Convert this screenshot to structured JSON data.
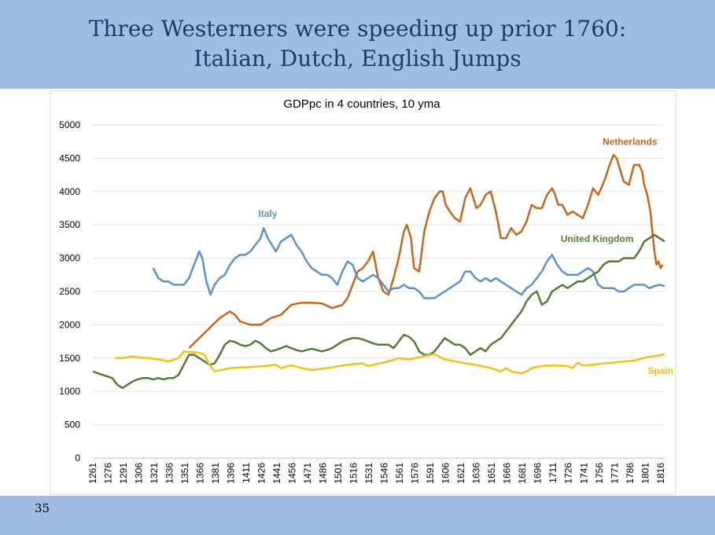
{
  "slide": {
    "title_line1": "Three Westerners were speeding up prior 1760:",
    "title_line2": "Italian, Dutch, English Jumps",
    "page_number": "35"
  },
  "colors": {
    "header_bg": "#a3bce4",
    "netherlands": "#c5661d",
    "italy": "#5b93c7",
    "uk": "#5a7a34",
    "spain": "#f3c018"
  },
  "chart_data": {
    "type": "line",
    "title": "GDPpc in 4 countries, 10 yma",
    "xlabel": "",
    "ylabel": "",
    "ylim": [
      0,
      5000
    ],
    "yticks": [
      0,
      500,
      1000,
      1500,
      2000,
      2500,
      3000,
      3500,
      4000,
      4500,
      5000
    ],
    "xlim": [
      1261,
      1820
    ],
    "xticks": [
      "1261",
      "1276",
      "1291",
      "1306",
      "1321",
      "1336",
      "1351",
      "1366",
      "1381",
      "1396",
      "1411",
      "1426",
      "1441",
      "1456",
      "1471",
      "1486",
      "1501",
      "1516",
      "1531",
      "1546",
      "1561",
      "1576",
      "1591",
      "1606",
      "1621",
      "1636",
      "1651",
      "1666",
      "1681",
      "1696",
      "1711",
      "1726",
      "1741",
      "1756",
      "1771",
      "1786",
      "1801",
      "1816"
    ],
    "series": [
      {
        "name": "Netherlands",
        "label": "Netherlands",
        "color": "#c5661d",
        "x": [
          1355,
          1365,
          1375,
          1385,
          1395,
          1400,
          1405,
          1415,
          1425,
          1435,
          1445,
          1455,
          1465,
          1475,
          1485,
          1495,
          1505,
          1510,
          1515,
          1520,
          1525,
          1530,
          1535,
          1540,
          1545,
          1550,
          1555,
          1560,
          1565,
          1568,
          1572,
          1575,
          1580,
          1585,
          1590,
          1595,
          1600,
          1603,
          1606,
          1610,
          1615,
          1620,
          1625,
          1630,
          1636,
          1640,
          1645,
          1650,
          1655,
          1660,
          1665,
          1670,
          1675,
          1680,
          1685,
          1690,
          1695,
          1700,
          1705,
          1710,
          1713,
          1716,
          1720,
          1725,
          1730,
          1735,
          1740,
          1745,
          1750,
          1755,
          1758,
          1762,
          1765,
          1770,
          1773,
          1775,
          1780,
          1785,
          1790,
          1795,
          1798,
          1800,
          1803,
          1806,
          1808,
          1810,
          1812,
          1814,
          1816,
          1818
        ],
        "values": [
          1650,
          1800,
          1950,
          2100,
          2200,
          2150,
          2050,
          2000,
          2000,
          2100,
          2150,
          2300,
          2330,
          2330,
          2320,
          2250,
          2300,
          2400,
          2600,
          2800,
          2850,
          2950,
          3100,
          2700,
          2500,
          2450,
          2700,
          3000,
          3400,
          3500,
          3300,
          2850,
          2800,
          3400,
          3700,
          3900,
          4000,
          4000,
          3800,
          3700,
          3600,
          3550,
          3900,
          4050,
          3750,
          3800,
          3950,
          4000,
          3700,
          3300,
          3300,
          3450,
          3350,
          3400,
          3550,
          3800,
          3750,
          3750,
          3950,
          4050,
          3950,
          3800,
          3800,
          3650,
          3700,
          3650,
          3600,
          3800,
          4050,
          3950,
          4050,
          4200,
          4350,
          4550,
          4500,
          4400,
          4150,
          4100,
          4400,
          4400,
          4300,
          4100,
          3950,
          3700,
          3400,
          3100,
          2900,
          2950,
          2850,
          2900
        ]
      },
      {
        "name": "Italy",
        "label": "Italy",
        "color": "#5b93c7",
        "x": [
          1320,
          1325,
          1330,
          1335,
          1340,
          1345,
          1350,
          1355,
          1360,
          1365,
          1368,
          1372,
          1376,
          1380,
          1385,
          1390,
          1395,
          1400,
          1405,
          1410,
          1415,
          1420,
          1425,
          1428,
          1432,
          1436,
          1440,
          1445,
          1450,
          1455,
          1460,
          1465,
          1470,
          1475,
          1480,
          1485,
          1490,
          1495,
          1500,
          1505,
          1510,
          1515,
          1520,
          1525,
          1530,
          1535,
          1540,
          1545,
          1550,
          1555,
          1560,
          1565,
          1570,
          1575,
          1580,
          1585,
          1590,
          1595,
          1600,
          1605,
          1610,
          1615,
          1620,
          1625,
          1630,
          1635,
          1640,
          1645,
          1650,
          1655,
          1660,
          1665,
          1670,
          1675,
          1680,
          1685,
          1690,
          1695,
          1700,
          1705,
          1710,
          1715,
          1720,
          1725,
          1730,
          1735,
          1740,
          1745,
          1750,
          1755,
          1760,
          1765,
          1770,
          1775,
          1780,
          1785,
          1790,
          1795,
          1800,
          1805,
          1810,
          1815,
          1820
        ],
        "values": [
          2850,
          2700,
          2650,
          2650,
          2600,
          2600,
          2600,
          2700,
          2900,
          3100,
          3000,
          2650,
          2450,
          2600,
          2700,
          2750,
          2900,
          3000,
          3050,
          3050,
          3100,
          3200,
          3300,
          3450,
          3300,
          3200,
          3100,
          3250,
          3300,
          3350,
          3200,
          3100,
          2950,
          2850,
          2800,
          2750,
          2750,
          2700,
          2600,
          2800,
          2950,
          2900,
          2700,
          2650,
          2700,
          2750,
          2700,
          2600,
          2500,
          2550,
          2550,
          2600,
          2550,
          2550,
          2500,
          2400,
          2400,
          2400,
          2450,
          2500,
          2550,
          2600,
          2650,
          2800,
          2800,
          2700,
          2650,
          2700,
          2650,
          2700,
          2650,
          2600,
          2550,
          2500,
          2450,
          2550,
          2600,
          2700,
          2800,
          2950,
          3050,
          2900,
          2800,
          2750,
          2750,
          2750,
          2800,
          2850,
          2800,
          2600,
          2550,
          2550,
          2550,
          2500,
          2500,
          2550,
          2600,
          2600,
          2600,
          2550,
          2580,
          2600,
          2580
        ]
      },
      {
        "name": "United Kingdom",
        "label": "United Kingdom",
        "color": "#5a7a34",
        "x": [
          1261,
          1270,
          1280,
          1285,
          1290,
          1295,
          1300,
          1305,
          1310,
          1315,
          1320,
          1325,
          1330,
          1335,
          1340,
          1345,
          1350,
          1355,
          1360,
          1365,
          1370,
          1375,
          1380,
          1385,
          1390,
          1395,
          1400,
          1405,
          1410,
          1415,
          1420,
          1425,
          1430,
          1435,
          1440,
          1445,
          1450,
          1455,
          1460,
          1465,
          1470,
          1475,
          1480,
          1485,
          1490,
          1495,
          1500,
          1505,
          1510,
          1515,
          1520,
          1525,
          1530,
          1535,
          1540,
          1545,
          1550,
          1555,
          1560,
          1565,
          1570,
          1575,
          1580,
          1585,
          1590,
          1595,
          1600,
          1605,
          1610,
          1615,
          1620,
          1625,
          1630,
          1635,
          1640,
          1645,
          1650,
          1655,
          1660,
          1665,
          1670,
          1675,
          1680,
          1685,
          1690,
          1695,
          1700,
          1705,
          1710,
          1715,
          1720,
          1725,
          1730,
          1735,
          1740,
          1745,
          1750,
          1755,
          1760,
          1765,
          1770,
          1775,
          1780,
          1785,
          1790,
          1795,
          1800,
          1805,
          1810,
          1815,
          1820
        ],
        "values": [
          1300,
          1250,
          1200,
          1100,
          1050,
          1100,
          1150,
          1180,
          1200,
          1200,
          1180,
          1200,
          1180,
          1200,
          1200,
          1250,
          1400,
          1550,
          1550,
          1500,
          1450,
          1400,
          1420,
          1550,
          1700,
          1760,
          1740,
          1700,
          1680,
          1700,
          1760,
          1720,
          1650,
          1600,
          1620,
          1650,
          1680,
          1650,
          1620,
          1600,
          1620,
          1640,
          1620,
          1600,
          1620,
          1650,
          1700,
          1750,
          1780,
          1800,
          1800,
          1780,
          1750,
          1720,
          1700,
          1700,
          1700,
          1650,
          1750,
          1850,
          1820,
          1750,
          1600,
          1550,
          1550,
          1600,
          1700,
          1800,
          1750,
          1700,
          1700,
          1650,
          1550,
          1600,
          1650,
          1600,
          1700,
          1750,
          1800,
          1900,
          2000,
          2100,
          2200,
          2350,
          2450,
          2500,
          2300,
          2350,
          2500,
          2550,
          2600,
          2550,
          2600,
          2650,
          2650,
          2700,
          2750,
          2800,
          2900,
          2950,
          2950,
          2950,
          3000,
          3000,
          3000,
          3100,
          3250,
          3300,
          3350,
          3300,
          3250
        ]
      },
      {
        "name": "Spain",
        "label": "Spain",
        "color": "#f3c018",
        "x": [
          1283,
          1290,
          1300,
          1305,
          1315,
          1325,
          1335,
          1345,
          1350,
          1365,
          1370,
          1375,
          1380,
          1395,
          1420,
          1430,
          1440,
          1445,
          1455,
          1465,
          1475,
          1480,
          1490,
          1510,
          1525,
          1530,
          1550,
          1560,
          1570,
          1595,
          1600,
          1605,
          1615,
          1625,
          1635,
          1650,
          1660,
          1665,
          1670,
          1680,
          1685,
          1690,
          1700,
          1710,
          1725,
          1730,
          1735,
          1740,
          1750,
          1760,
          1775,
          1790,
          1795,
          1805,
          1815,
          1820
        ],
        "values": [
          1500,
          1500,
          1520,
          1510,
          1500,
          1480,
          1450,
          1500,
          1600,
          1580,
          1550,
          1400,
          1300,
          1350,
          1370,
          1380,
          1400,
          1350,
          1390,
          1350,
          1320,
          1330,
          1350,
          1400,
          1420,
          1380,
          1450,
          1500,
          1480,
          1560,
          1520,
          1480,
          1450,
          1420,
          1400,
          1350,
          1300,
          1350,
          1300,
          1270,
          1300,
          1350,
          1380,
          1390,
          1380,
          1350,
          1430,
          1390,
          1400,
          1420,
          1440,
          1460,
          1480,
          1520,
          1540,
          1560
        ]
      }
    ]
  }
}
